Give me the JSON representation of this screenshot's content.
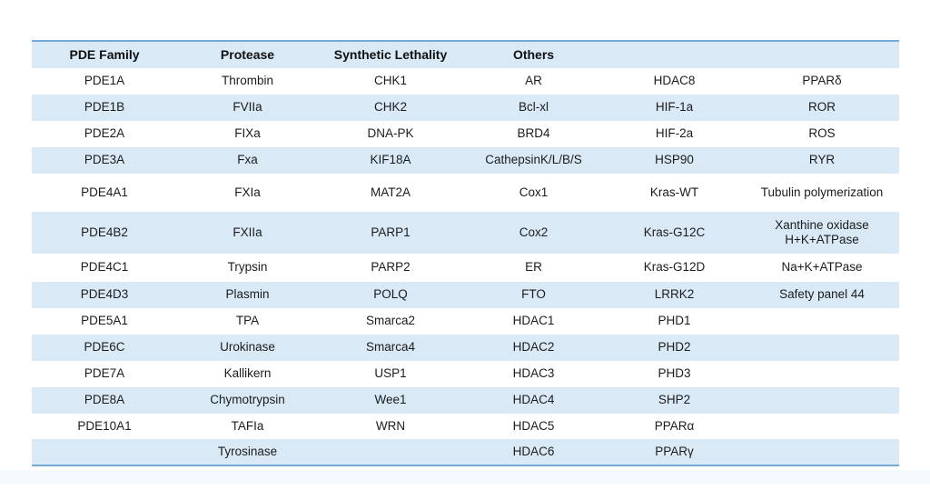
{
  "colors": {
    "row_shade": "#d9e9f6",
    "border_line": "#74a9d8",
    "text": "#1c1c1c"
  },
  "table": {
    "headers": [
      "PDE Family",
      "Protease",
      "Synthetic Lethality",
      "Others",
      "",
      ""
    ],
    "rows": [
      {
        "shaded": false,
        "cells": [
          "PDE1A",
          "Thrombin",
          "CHK1",
          "AR",
          "HDAC8",
          "PPARδ"
        ]
      },
      {
        "shaded": true,
        "cells": [
          "PDE1B",
          "FVIIa",
          "CHK2",
          "Bcl-xl",
          "HIF-1a",
          "ROR"
        ]
      },
      {
        "shaded": false,
        "cells": [
          "PDE2A",
          "FIXa",
          "DNA-PK",
          "BRD4",
          "HIF-2a",
          "ROS"
        ]
      },
      {
        "shaded": true,
        "cells": [
          "PDE3A",
          "Fxa",
          "KIF18A",
          "CathepsinK/L/B/S",
          "HSP90",
          "RYR"
        ]
      },
      {
        "shaded": false,
        "cells": [
          "PDE4A1",
          "FXIa",
          "MAT2A",
          "Cox1",
          "Kras-WT",
          "Tubulin polymerization"
        ]
      },
      {
        "shaded": true,
        "cells": [
          "PDE4B2",
          "FXIIa",
          "PARP1",
          "Cox2",
          "Kras-G12C",
          "Xanthine oxidase\nH+K+ATPase"
        ]
      },
      {
        "shaded": false,
        "cells": [
          "PDE4C1",
          "Trypsin",
          "PARP2",
          "ER",
          "Kras-G12D",
          "Na+K+ATPase"
        ]
      },
      {
        "shaded": true,
        "cells": [
          "PDE4D3",
          "Plasmin",
          "POLQ",
          "FTO",
          "LRRK2",
          "Safety panel 44"
        ]
      },
      {
        "shaded": false,
        "cells": [
          "PDE5A1",
          "TPA",
          "Smarca2",
          "HDAC1",
          "PHD1",
          ""
        ]
      },
      {
        "shaded": true,
        "cells": [
          "PDE6C",
          "Urokinase",
          "Smarca4",
          "HDAC2",
          "PHD2",
          ""
        ]
      },
      {
        "shaded": false,
        "cells": [
          "PDE7A",
          "Kallikern",
          "USP1",
          "HDAC3",
          "PHD3",
          ""
        ]
      },
      {
        "shaded": true,
        "cells": [
          "PDE8A",
          "Chymotrypsin",
          "Wee1",
          "HDAC4",
          "SHP2",
          ""
        ]
      },
      {
        "shaded": false,
        "cells": [
          "PDE10A1",
          "TAFIa",
          "WRN",
          "HDAC5",
          "PPARα",
          ""
        ]
      },
      {
        "shaded": true,
        "cells": [
          "",
          "Tyrosinase",
          "",
          "HDAC6",
          "PPARγ",
          ""
        ]
      }
    ]
  }
}
